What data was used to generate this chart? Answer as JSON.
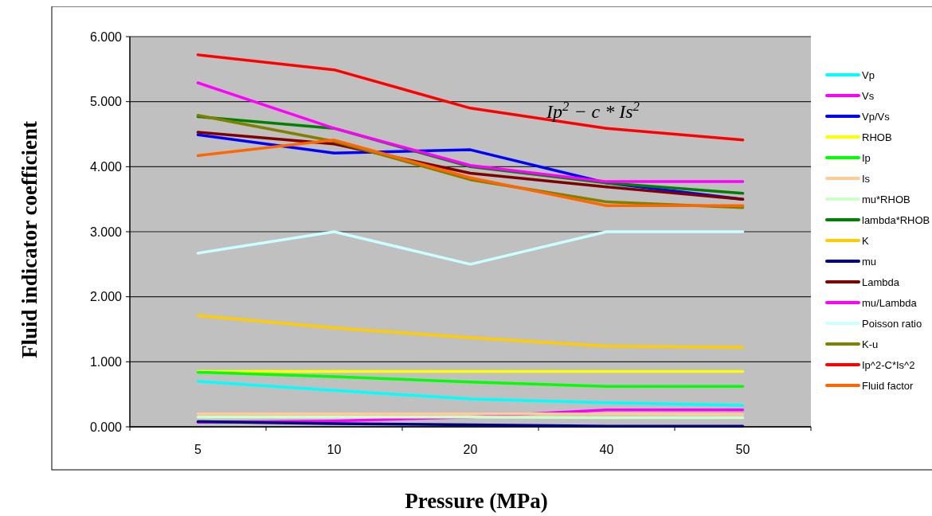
{
  "chart_data": {
    "type": "line",
    "xlabel": "Pressure (MPa)",
    "ylabel": "Fluid indicator coefficient",
    "categories": [
      "5",
      "10",
      "20",
      "40",
      "50"
    ],
    "ylim": [
      0,
      6
    ],
    "yticks": [
      {
        "value": 0,
        "label": "0.000"
      },
      {
        "value": 1,
        "label": "1.000"
      },
      {
        "value": 2,
        "label": "2.000"
      },
      {
        "value": 3,
        "label": "3.000"
      },
      {
        "value": 4,
        "label": "4.000"
      },
      {
        "value": 5,
        "label": "5.000"
      },
      {
        "value": 6,
        "label": "6.000"
      }
    ],
    "grid": "y",
    "legend": "right",
    "marker": "none",
    "line_style": "solid",
    "annotations": [
      "Ip$^{2}$ − c * Is$^{2}$"
    ],
    "series": [
      {
        "name": "Vp",
        "color": "#00ffff",
        "values": [
          0.7,
          0.56,
          0.43,
          0.37,
          0.33
        ]
      },
      {
        "name": "Vs",
        "color": "#ff00ff",
        "values": [
          0.07,
          0.09,
          0.15,
          0.26,
          0.26
        ]
      },
      {
        "name": "Vp/Vs",
        "color": "#0000ff",
        "values": [
          4.49,
          4.21,
          4.26,
          3.75,
          3.5
        ]
      },
      {
        "name": "RHOB",
        "color": "#ffff00",
        "values": [
          0.85,
          0.85,
          0.85,
          0.85,
          0.85
        ]
      },
      {
        "name": "Ip",
        "color": "#00ff00",
        "values": [
          0.84,
          0.77,
          0.69,
          0.62,
          0.62
        ]
      },
      {
        "name": "Is",
        "color": "#ffcc99",
        "values": [
          0.2,
          0.2,
          0.2,
          0.2,
          0.19
        ]
      },
      {
        "name": "mu*RHOB",
        "color": "#ccffcc",
        "values": [
          0.15,
          0.15,
          0.15,
          0.14,
          0.14
        ]
      },
      {
        "name": "lambda*RHOB",
        "color": "#008000",
        "values": [
          4.77,
          4.59,
          4.0,
          3.75,
          3.59
        ]
      },
      {
        "name": "K",
        "color": "#ffcc00",
        "values": [
          1.71,
          1.52,
          1.37,
          1.24,
          1.22
        ]
      },
      {
        "name": "mu",
        "color": "#000080",
        "values": [
          0.08,
          0.05,
          0.03,
          0.01,
          0.01
        ]
      },
      {
        "name": "Lambda",
        "color": "#800000",
        "values": [
          4.53,
          4.35,
          3.9,
          3.69,
          3.5
        ]
      },
      {
        "name": "mu/Lambda",
        "color": "#ff00ff",
        "values": [
          5.29,
          4.59,
          4.02,
          3.77,
          3.77
        ]
      },
      {
        "name": "Poisson ratio",
        "color": "#ccffff",
        "values": [
          2.67,
          3.0,
          2.5,
          3.0,
          3.0
        ]
      },
      {
        "name": "K-u",
        "color": "#808000",
        "values": [
          4.79,
          4.39,
          3.8,
          3.46,
          3.37
        ]
      },
      {
        "name": "Ip^2-C*Is^2",
        "color": "#ff0000",
        "values": [
          5.72,
          5.49,
          4.9,
          4.59,
          4.41
        ]
      },
      {
        "name": "Fluid factor",
        "color": "#ff6600",
        "values": [
          4.17,
          4.41,
          3.83,
          3.4,
          3.4
        ]
      }
    ]
  }
}
